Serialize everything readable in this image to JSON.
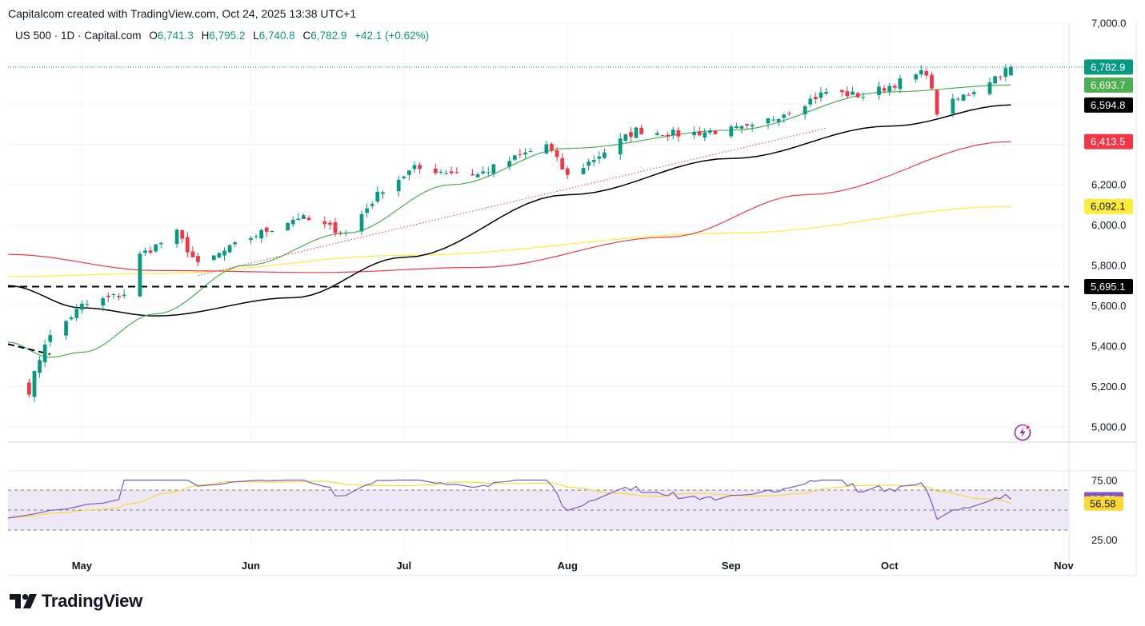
{
  "header": {
    "credit": "Capitalcom created with TradingView.com, Oct 24, 2025 13:38 UTC+1"
  },
  "legend": {
    "symbol": "US 500 · 1D · Capital.com",
    "open_label": "O",
    "open": "6,741.3",
    "high_label": "H",
    "high": "6,795.2",
    "low_label": "L",
    "low": "6,740.8",
    "close_label": "C",
    "close": "6,782.9",
    "change": "+42.1 (+0.62%)"
  },
  "brand": {
    "name": "TradingView"
  },
  "colors": {
    "up": "#089981",
    "down": "#f23645",
    "sma_green": "#4caf50",
    "sma_black": "#000000",
    "sma_red": "#f23645",
    "sma_yellow": "#ffeb3b",
    "rsi": "#7e57c2",
    "rsi_ma": "#fdd835",
    "rsi_band": "#ede7f6"
  },
  "chart_data": [
    {
      "type": "candlestick",
      "symbol": "US 500",
      "interval": "1D",
      "ylim": [
        4950,
        7000
      ],
      "y_ticks": [
        "5,000.0",
        "5,200.0",
        "5,400.0",
        "5,600.0",
        "5,800.0",
        "6,000.0",
        "6,200.0",
        "7,000.0"
      ],
      "x_ticks": [
        "May",
        "Jun",
        "Jul",
        "Aug",
        "Sep",
        "Oct",
        "Nov"
      ],
      "x_tick_dates": [
        "2025-05-01",
        "2025-06-02",
        "2025-07-01",
        "2025-08-01",
        "2025-09-01",
        "2025-10-01",
        "2025-11-03"
      ],
      "x_range": [
        "2025-04-17",
        "2025-11-04"
      ],
      "close_series_endpoints": {
        "start": "2025-04-21",
        "end": "2025-10-24",
        "start_close": 5180,
        "end_close": 6782.9
      },
      "last_candle": {
        "open": 6741.3,
        "high": 6795.2,
        "low": 6740.8,
        "close": 6782.9
      },
      "moving_averages": [
        {
          "color": "#4caf50",
          "last": 6693.7,
          "label": "6,693.7"
        },
        {
          "color": "#000000",
          "last": 6594.8,
          "label": "6,594.8"
        },
        {
          "color": "#f23645",
          "last": 6413.5,
          "label": "6,413.5"
        },
        {
          "color": "#ffeb3b",
          "last": 6092.1,
          "label": "6,092.1"
        }
      ],
      "price_line": {
        "value": 6782.9,
        "label": "6,782.9"
      },
      "horizontal_level": {
        "value": 5695.1,
        "label": "5,695.1",
        "style": "dashed"
      },
      "grid": true
    },
    {
      "type": "line",
      "indicator": "RSI",
      "ylim": [
        15,
        85
      ],
      "y_ticks": [
        "75.00",
        "25.00"
      ],
      "bands": [
        70,
        50,
        30
      ],
      "rsi_last": 60.79,
      "rsi_label": "60.79",
      "rsi_ma_last": 56.58,
      "rsi_ma_label": "56.58"
    }
  ]
}
